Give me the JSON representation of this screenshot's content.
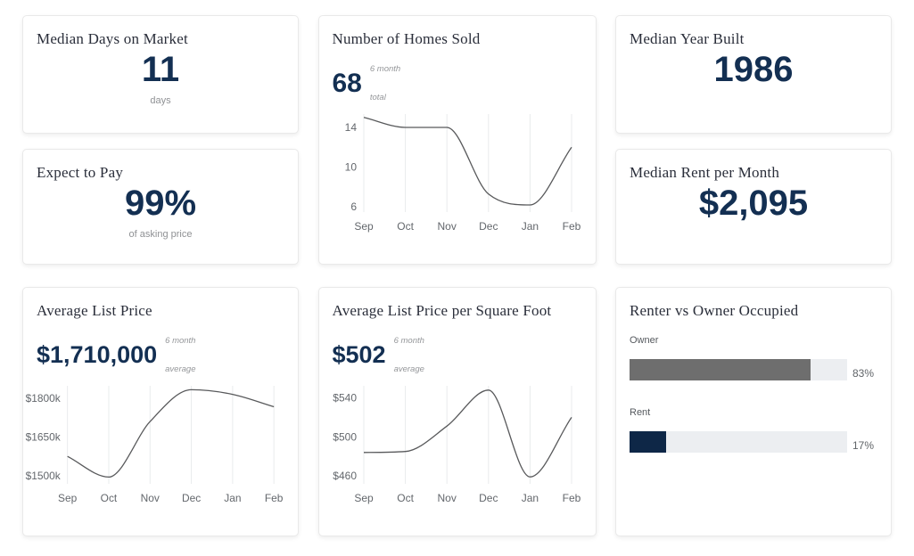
{
  "colors": {
    "stat_navy": "#132f52",
    "title_color": "#2a2e3a",
    "owner_bar": "#6e6e6e",
    "rent_bar": "#0e2747",
    "bar_track": "#eceef1",
    "chart_line": "#58595b",
    "grid_line": "#e9ebec",
    "muted_text": "#8f9194"
  },
  "cards": {
    "days_on_market": {
      "title": "Median Days on Market",
      "value": "11",
      "sublabel": "days"
    },
    "homes_sold": {
      "title": "Number of Homes Sold",
      "value": "68",
      "qualifier_top": "6 month",
      "qualifier_bottom": "total"
    },
    "year_built": {
      "title": "Median Year Built",
      "value": "1986"
    },
    "expect_to_pay": {
      "title": "Expect to Pay",
      "value": "99%",
      "sublabel": "of asking price"
    },
    "rent_per_month": {
      "title": "Median Rent per Month",
      "value": "$2,095"
    },
    "avg_list_price": {
      "title": "Average List Price",
      "value": "$1,710,000",
      "qualifier_top": "6 month",
      "qualifier_bottom": "average"
    },
    "avg_price_per_sqft": {
      "title": "Average List Price per Square Foot",
      "value": "$502",
      "qualifier_top": "6 month",
      "qualifier_bottom": "average"
    },
    "renter_vs_owner": {
      "title": "Renter vs Owner Occupied"
    }
  },
  "chart_data": [
    {
      "id": "homes-sold-trend",
      "type": "line",
      "title": "Number of Homes Sold",
      "x": [
        "Sep",
        "Oct",
        "Nov",
        "Dec",
        "Jan",
        "Feb"
      ],
      "values": [
        15,
        14,
        14,
        7.3,
        6.2,
        12
      ],
      "y_ticks": [
        14,
        10,
        6
      ],
      "y_tick_labels": [
        "14",
        "10",
        "6"
      ],
      "ylim": [
        5.3,
        15.7
      ],
      "grid": "vertical-only",
      "line_color": "#58595b"
    },
    {
      "id": "avg-list-price-trend",
      "type": "line",
      "title": "Average List Price",
      "x": [
        "Sep",
        "Oct",
        "Nov",
        "Dec",
        "Jan",
        "Feb"
      ],
      "values": [
        1575,
        1495,
        1710,
        1833,
        1815,
        1767
      ],
      "y_ticks": [
        1800,
        1650,
        1500
      ],
      "y_tick_labels": [
        "$1800k",
        "$1650k",
        "$1500k"
      ],
      "ylim": [
        1462,
        1862
      ],
      "grid": "vertical-only",
      "line_color": "#58595b"
    },
    {
      "id": "avg-price-sqft-trend",
      "type": "line",
      "title": "Average List Price per Square Foot",
      "x": [
        "Sep",
        "Oct",
        "Nov",
        "Dec",
        "Jan",
        "Feb"
      ],
      "values": [
        484,
        485,
        511,
        548,
        459,
        520
      ],
      "y_ticks": [
        540,
        500,
        460
      ],
      "y_tick_labels": [
        "$540",
        "$500",
        "$460"
      ],
      "ylim": [
        450,
        556
      ],
      "grid": "vertical-only",
      "line_color": "#58595b"
    },
    {
      "id": "renter-owner-split",
      "type": "bar",
      "title": "Renter vs Owner Occupied",
      "bars": [
        {
          "label": "Owner",
          "value": 83,
          "value_label": "83%",
          "color": "#6e6e6e"
        },
        {
          "label": "Rent",
          "value": 17,
          "value_label": "17%",
          "color": "#0e2747"
        }
      ]
    }
  ]
}
